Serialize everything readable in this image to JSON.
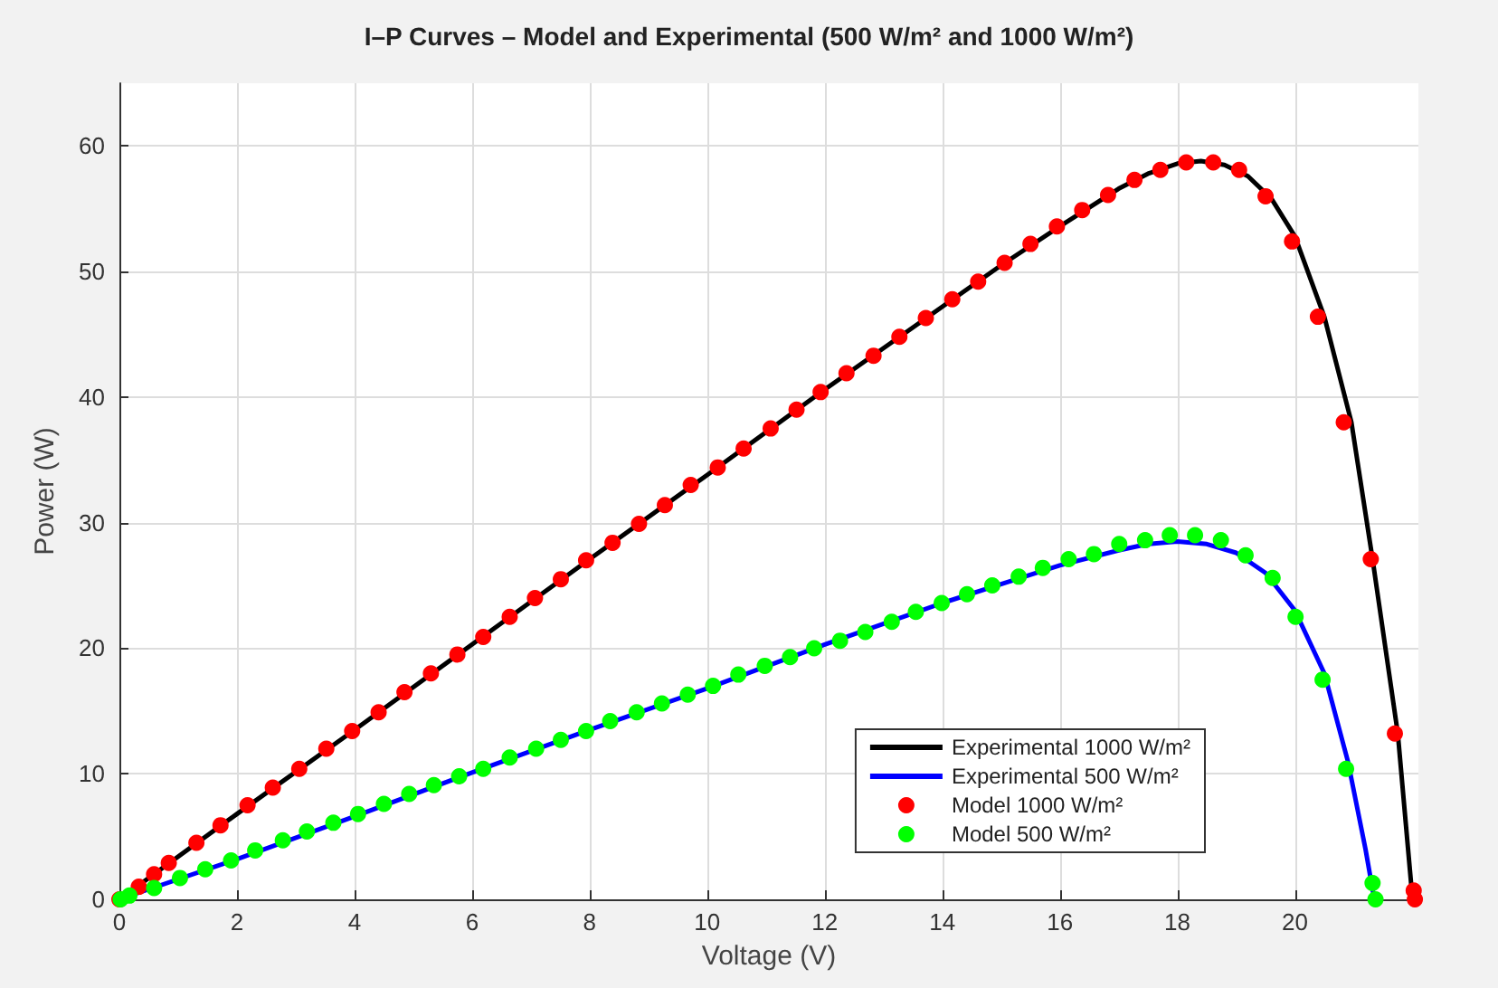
{
  "chart_data": {
    "type": "line",
    "title": "I–P Curves – Model and Experimental (500 W/m² and 1000 W/m²)",
    "xlabel": "Voltage (V)",
    "ylabel": "Power (W)",
    "xlim": [
      0,
      22.1
    ],
    "xticks": [
      0,
      2,
      4,
      6,
      8,
      10,
      12,
      14,
      16,
      18,
      20
    ],
    "ylim": [
      0,
      65
    ],
    "yticks": [
      0,
      10,
      20,
      30,
      40,
      50,
      60
    ],
    "grid": true,
    "legend": "bottom right",
    "marker": "circle",
    "series": [
      {
        "name": "Experimental 1000 W/m²",
        "marker": "none",
        "line_style": "solid",
        "color": "#000000",
        "x": [
          0,
          2,
          4,
          6,
          8,
          10,
          12,
          14,
          15,
          16,
          17,
          17.5,
          18,
          18.4,
          18.8,
          19.2,
          19.6,
          20.0,
          20.5,
          20.96,
          21.32,
          21.75,
          22.0
        ],
        "values": [
          0,
          6.8,
          13.5,
          20.3,
          27.1,
          33.8,
          40.6,
          47.2,
          50.5,
          53.6,
          56.6,
          57.8,
          58.6,
          58.8,
          58.5,
          57.6,
          55.8,
          52.8,
          46.4,
          38.0,
          27.1,
          13.2,
          0
        ]
      },
      {
        "name": "Experimental 500 W/m²",
        "marker": "none",
        "line_style": "solid",
        "color": "#0000ff",
        "x": [
          0,
          2,
          4,
          6,
          8,
          10,
          12,
          14,
          15,
          16,
          17,
          17.5,
          18,
          18.5,
          19,
          19.5,
          20,
          20.5,
          20.9,
          21.2,
          21.35
        ],
        "values": [
          0,
          3.2,
          6.6,
          10.1,
          13.5,
          16.8,
          20.3,
          23.6,
          25.1,
          26.6,
          27.8,
          28.3,
          28.5,
          28.3,
          27.6,
          26.0,
          23.0,
          18.0,
          11.0,
          4.0,
          0
        ]
      },
      {
        "name": "Model 1000 W/m²",
        "type": "scatter",
        "color": "#ff0000",
        "x": [
          0,
          0.33,
          0.59,
          0.84,
          1.31,
          1.72,
          2.18,
          2.61,
          3.06,
          3.52,
          3.96,
          4.41,
          4.85,
          5.3,
          5.75,
          6.19,
          6.64,
          7.07,
          7.51,
          7.94,
          8.39,
          8.84,
          9.28,
          9.72,
          10.18,
          10.62,
          11.08,
          11.52,
          11.93,
          12.37,
          12.83,
          13.27,
          13.72,
          14.17,
          14.61,
          15.06,
          15.5,
          15.95,
          16.38,
          16.82,
          17.27,
          17.71,
          18.15,
          18.61,
          19.05,
          19.5,
          19.95,
          20.39,
          20.83,
          21.29,
          21.7,
          22.02,
          22.04
        ],
        "values": [
          0,
          1.0,
          2.0,
          2.9,
          4.5,
          5.9,
          7.5,
          8.9,
          10.4,
          12.0,
          13.4,
          14.9,
          16.5,
          18.0,
          19.5,
          20.9,
          22.5,
          24.0,
          25.5,
          27.0,
          28.4,
          29.9,
          31.4,
          33.0,
          34.4,
          35.9,
          37.5,
          39.0,
          40.4,
          41.9,
          43.3,
          44.8,
          46.3,
          47.8,
          49.2,
          50.7,
          52.2,
          53.6,
          54.9,
          56.1,
          57.3,
          58.1,
          58.7,
          58.7,
          58.1,
          56.0,
          52.4,
          46.4,
          38.0,
          27.1,
          13.2,
          0.7,
          0
        ]
      },
      {
        "name": "Model 500 W/m²",
        "type": "scatter",
        "color": "#00ff00",
        "x": [
          0.02,
          0.17,
          0.59,
          1.03,
          1.46,
          1.9,
          2.31,
          2.78,
          3.19,
          3.64,
          4.06,
          4.5,
          4.93,
          5.35,
          5.78,
          6.19,
          6.64,
          7.09,
          7.51,
          7.94,
          8.35,
          8.8,
          9.23,
          9.67,
          10.1,
          10.53,
          10.98,
          11.41,
          11.82,
          12.26,
          12.69,
          13.14,
          13.55,
          13.99,
          14.42,
          14.85,
          15.3,
          15.71,
          16.15,
          16.58,
          17.01,
          17.45,
          17.87,
          18.3,
          18.74,
          19.16,
          19.62,
          20.01,
          20.47,
          20.87,
          21.32,
          21.37
        ],
        "values": [
          0,
          0.3,
          0.9,
          1.7,
          2.4,
          3.1,
          3.9,
          4.7,
          5.4,
          6.1,
          6.8,
          7.6,
          8.4,
          9.1,
          9.8,
          10.4,
          11.3,
          12.0,
          12.7,
          13.4,
          14.2,
          14.9,
          15.6,
          16.3,
          17.0,
          17.9,
          18.6,
          19.3,
          20.0,
          20.6,
          21.3,
          22.1,
          22.9,
          23.6,
          24.3,
          25.0,
          25.7,
          26.4,
          27.1,
          27.5,
          28.3,
          28.6,
          29.0,
          29.0,
          28.6,
          27.4,
          25.6,
          22.5,
          17.5,
          10.4,
          1.3,
          0
        ]
      }
    ]
  }
}
